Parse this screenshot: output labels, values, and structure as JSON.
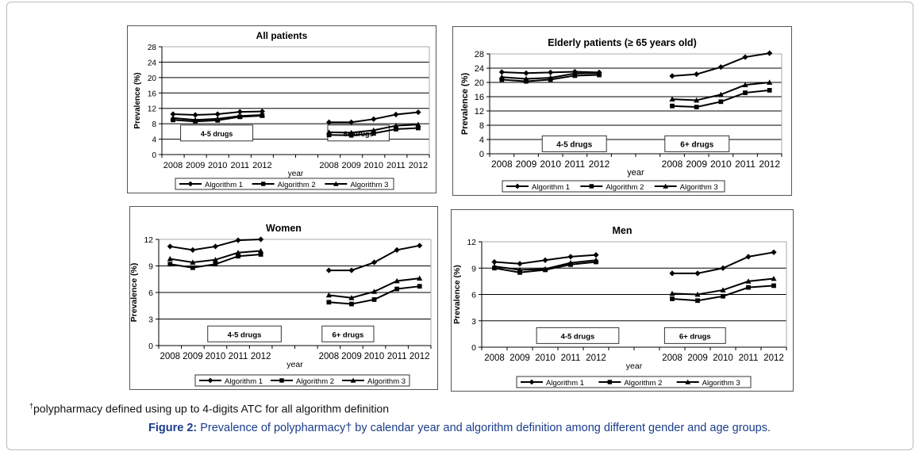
{
  "footnote": {
    "dagger": "†",
    "text": "polypharmacy defined using up to 4-digits ATC for all algorithm definition"
  },
  "caption": {
    "label": "Figure 2:",
    "text": " Prevalence of polypharmacy† by calendar year and algorithm definition among different gender and age groups."
  },
  "chart_data": [
    {
      "type": "line",
      "title": "All patients",
      "xlabel": "year",
      "ylabel": "Prevalence (%)",
      "ylim": [
        0,
        28
      ],
      "yticks": [
        0,
        4,
        8,
        12,
        16,
        20,
        24,
        28
      ],
      "grid": true,
      "legend": "bottom",
      "groups": [
        {
          "label": "4-5 drugs",
          "x": [
            "2008",
            "2009",
            "2010",
            "2011",
            "2012"
          ],
          "series": [
            {
              "name": "Algorithm 1",
              "values": [
                10.5,
                10.3,
                10.5,
                11.1,
                11.2
              ]
            },
            {
              "name": "Algorithm 2",
              "values": [
                9.0,
                8.6,
                8.9,
                9.8,
                10.1
              ]
            },
            {
              "name": "Algorithm 3",
              "values": [
                9.5,
                9.0,
                9.3,
                10.0,
                10.3
              ]
            }
          ]
        },
        {
          "label": "6+  drugs",
          "x": [
            "2008",
            "2009",
            "2010",
            "2011",
            "2012"
          ],
          "series": [
            {
              "name": "Algorithm 1",
              "values": [
                8.4,
                8.4,
                9.2,
                10.4,
                11.0
              ]
            },
            {
              "name": "Algorithm 2",
              "values": [
                5.1,
                5.0,
                5.5,
                6.6,
                6.9
              ]
            },
            {
              "name": "Algorithm 3",
              "values": [
                5.8,
                5.7,
                6.3,
                7.5,
                7.8
              ]
            }
          ]
        }
      ],
      "legend_entries": [
        {
          "name": "Algorithm 1",
          "marker": "diamond"
        },
        {
          "name": "Algorithm 2",
          "marker": "square"
        },
        {
          "name": "Algorithm 3",
          "marker": "triangle"
        }
      ]
    },
    {
      "type": "line",
      "title": "Elderly patients (≥ 65 years old)",
      "xlabel": "year",
      "ylabel": "Prevalence (%)",
      "ylim": [
        0,
        28
      ],
      "yticks": [
        0,
        4,
        8,
        12,
        16,
        20,
        24,
        28
      ],
      "grid": true,
      "legend": "bottom",
      "groups": [
        {
          "label": "4-5 drugs",
          "x": [
            "2008",
            "2009",
            "2010",
            "2011",
            "2012"
          ],
          "series": [
            {
              "name": "Algorithm 1",
              "values": [
                22.9,
                22.6,
                22.8,
                23.0,
                22.8
              ]
            },
            {
              "name": "Algorithm 2",
              "values": [
                20.8,
                20.3,
                20.8,
                21.9,
                22.1
              ]
            },
            {
              "name": "Algorithm 3",
              "values": [
                21.5,
                21.0,
                21.3,
                22.5,
                22.6
              ]
            }
          ]
        },
        {
          "label": "6+ drugs",
          "x": [
            "2008",
            "2009",
            "2010",
            "2011",
            "2012"
          ],
          "series": [
            {
              "name": "Algorithm 1",
              "values": [
                21.8,
                22.3,
                24.3,
                27.1,
                28.2
              ]
            },
            {
              "name": "Algorithm 2",
              "values": [
                13.4,
                13.1,
                14.6,
                17.1,
                17.8
              ]
            },
            {
              "name": "Algorithm 3",
              "values": [
                15.3,
                15.0,
                16.6,
                19.3,
                20.0
              ]
            }
          ]
        }
      ],
      "legend_entries": [
        {
          "name": "Algorithm 1",
          "marker": "diamond"
        },
        {
          "name": "Algorithm 2",
          "marker": "square"
        },
        {
          "name": "Algorithm 3",
          "marker": "triangle"
        }
      ]
    },
    {
      "type": "line",
      "title": "Women",
      "xlabel": "year",
      "ylabel": "Prevalence (%)",
      "ylim": [
        0,
        12
      ],
      "yticks": [
        0,
        3,
        6,
        9,
        12
      ],
      "grid": true,
      "legend": "bottom",
      "groups": [
        {
          "label": "4-5 drugs",
          "x": [
            "2008",
            "2009",
            "2010",
            "2011",
            "2012"
          ],
          "series": [
            {
              "name": "Algorithm 1",
              "values": [
                11.2,
                10.8,
                11.2,
                11.9,
                12.0
              ]
            },
            {
              "name": "Algorithm 2",
              "values": [
                9.2,
                8.8,
                9.2,
                10.1,
                10.3
              ]
            },
            {
              "name": "Algorithm 3",
              "values": [
                9.8,
                9.4,
                9.7,
                10.5,
                10.7
              ]
            }
          ]
        },
        {
          "label": "6+ drugs",
          "x": [
            "2008",
            "2009",
            "2010",
            "2011",
            "2012"
          ],
          "series": [
            {
              "name": "Algorithm 1",
              "values": [
                8.5,
                8.5,
                9.4,
                10.8,
                11.3
              ]
            },
            {
              "name": "Algorithm 2",
              "values": [
                4.9,
                4.7,
                5.2,
                6.4,
                6.7
              ]
            },
            {
              "name": "Algorithm 3",
              "values": [
                5.7,
                5.4,
                6.1,
                7.3,
                7.6
              ]
            }
          ]
        }
      ],
      "legend_entries": [
        {
          "name": "Algorithm 1",
          "marker": "diamond"
        },
        {
          "name": "Algorithm 2",
          "marker": "square"
        },
        {
          "name": "Algorithm 3",
          "marker": "triangle"
        }
      ]
    },
    {
      "type": "line",
      "title": "Men",
      "xlabel": "year",
      "ylabel": "Prevalence (%)",
      "ylim": [
        0,
        12
      ],
      "yticks": [
        0,
        3,
        6,
        9,
        12
      ],
      "grid": true,
      "legend": "bottom",
      "groups": [
        {
          "label": "4-5 drugs",
          "x": [
            "2008",
            "2009",
            "2010",
            "2011",
            "2012"
          ],
          "series": [
            {
              "name": "Algorithm 1",
              "values": [
                9.7,
                9.5,
                9.9,
                10.3,
                10.5
              ]
            },
            {
              "name": "Algorithm 2",
              "values": [
                9.0,
                8.5,
                8.8,
                9.4,
                9.7
              ]
            },
            {
              "name": "Algorithm 3",
              "values": [
                9.2,
                8.8,
                8.9,
                9.6,
                9.9
              ]
            }
          ]
        },
        {
          "label": "6+ drugs",
          "x": [
            "2008",
            "2009",
            "2010",
            "2011",
            "2012"
          ],
          "series": [
            {
              "name": "Algorithm 1",
              "values": [
                8.4,
                8.4,
                9.0,
                10.3,
                10.8
              ]
            },
            {
              "name": "Algorithm 2",
              "values": [
                5.5,
                5.3,
                5.8,
                6.8,
                7.0
              ]
            },
            {
              "name": "Algorithm 3",
              "values": [
                6.1,
                6.0,
                6.5,
                7.5,
                7.8
              ]
            }
          ]
        }
      ],
      "legend_entries": [
        {
          "name": "Algorithm 1",
          "marker": "diamond"
        },
        {
          "name": "Algorithm 2",
          "marker": "square"
        },
        {
          "name": "Algorithm 3",
          "marker": "triangle"
        }
      ]
    }
  ]
}
